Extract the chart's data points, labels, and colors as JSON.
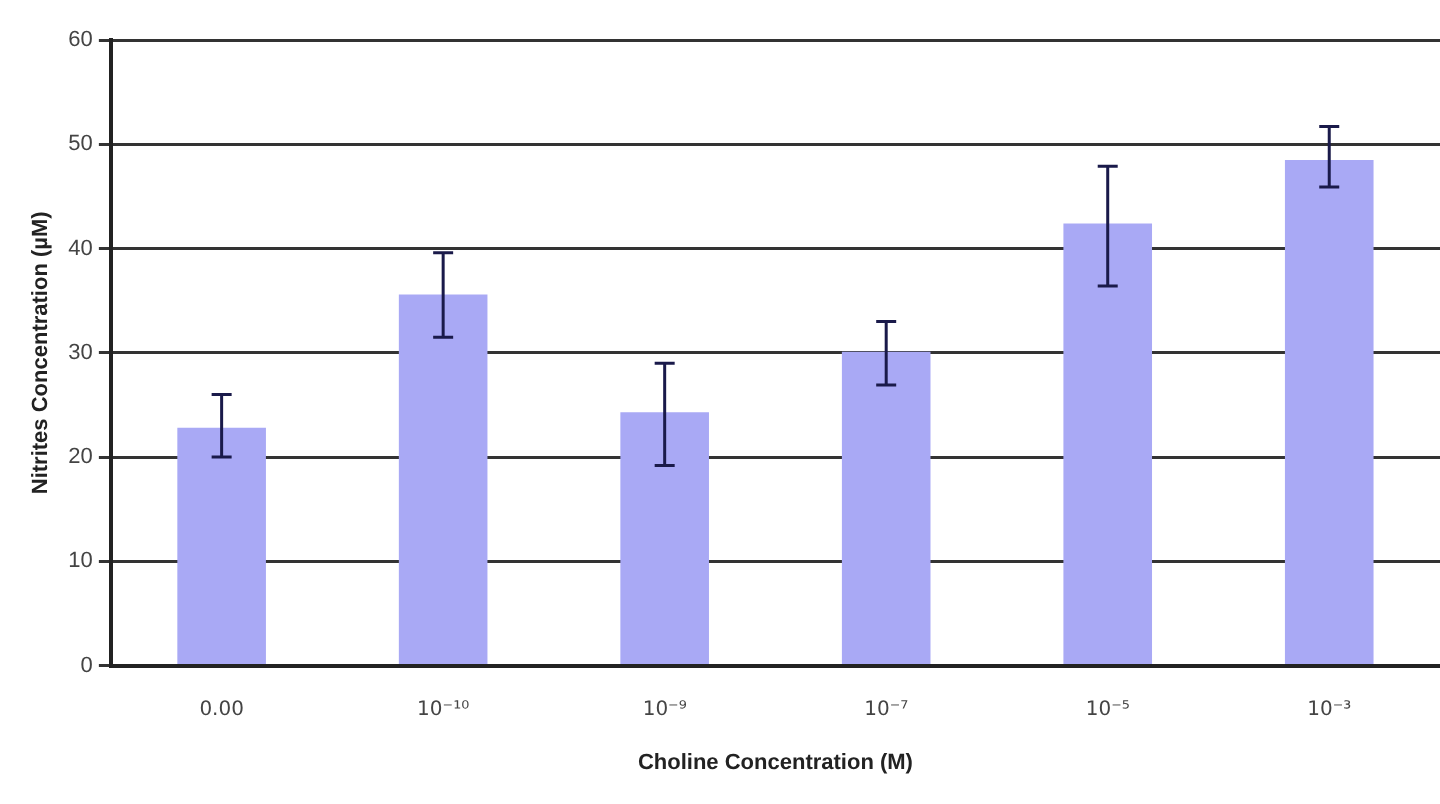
{
  "chart_data": {
    "type": "bar",
    "xlabel": "Choline Concentration (M)",
    "ylabel": "Nitrites Concentration (µM)",
    "categories": [
      "0.00",
      "10⁻¹⁰",
      "10⁻⁹",
      "10⁻⁷",
      "10⁻⁵",
      "10⁻³"
    ],
    "values": [
      22.8,
      35.6,
      24.3,
      30.1,
      42.4,
      48.5
    ],
    "errors": [
      [
        20,
        26
      ],
      [
        31.5,
        39.6
      ],
      [
        19.2,
        29
      ],
      [
        26.9,
        33
      ],
      [
        36.4,
        47.9
      ],
      [
        45.9,
        51.7
      ]
    ],
    "color": "#a9a9f5",
    "ylim": [
      0,
      60
    ],
    "yticks": [
      0,
      10,
      20,
      30,
      40,
      50,
      60
    ],
    "grid": "y",
    "legend": false
  }
}
